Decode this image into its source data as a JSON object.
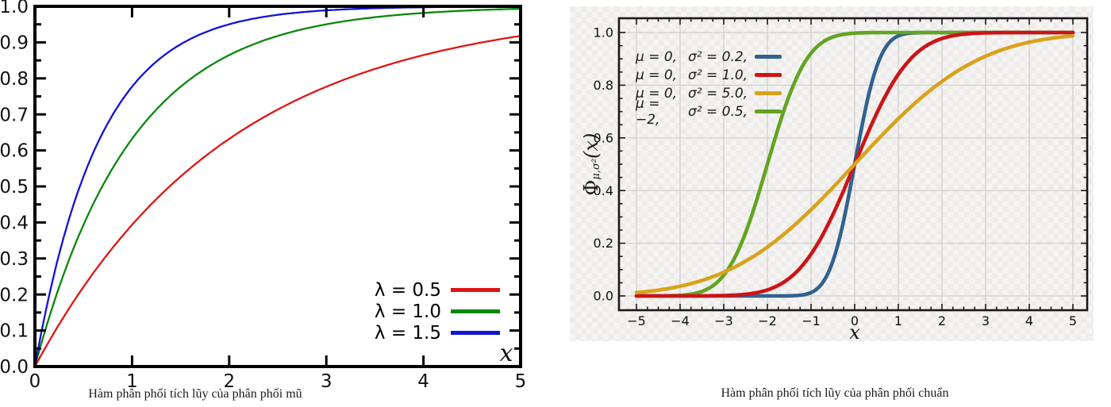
{
  "chart_data": [
    {
      "type": "line",
      "distribution": "exponential-cdf",
      "formula": "F(x) = 1 - exp(-lambda*x)",
      "caption": "Hàm phân phối tích lũy của phân phối mũ",
      "xlabel": "x",
      "xlim": [
        0,
        5
      ],
      "ylim": [
        0,
        1
      ],
      "x_ticks": {
        "values": [
          0,
          1,
          2,
          3,
          4,
          5
        ],
        "labels": [
          "0",
          "1",
          "2",
          "3",
          "4",
          "5"
        ]
      },
      "y_ticks": {
        "values": [
          0,
          0.1,
          0.2,
          0.3,
          0.4,
          0.5,
          0.6,
          0.7,
          0.8,
          0.9,
          1.0
        ],
        "labels": [
          "0.0",
          "0.1",
          "0.2",
          "0.3",
          "0.4",
          "0.5",
          "0.6",
          "0.7",
          "0.8",
          "0.9",
          "1.0"
        ]
      },
      "y_minor_step": 0.05,
      "grid": false,
      "legend_position": "lower right",
      "frame_color": "#000000",
      "series": [
        {
          "name": "λ = 0.5",
          "lambda": 0.5,
          "color": "#e01414"
        },
        {
          "name": "λ = 1.0",
          "lambda": 1.0,
          "color": "#0a870a"
        },
        {
          "name": "λ = 1.5",
          "lambda": 1.5,
          "color": "#1212d6"
        }
      ],
      "draw_order": [
        0,
        1,
        2
      ]
    },
    {
      "type": "line",
      "distribution": "normal-cdf",
      "formula": "F(x) = Phi((x - mu)/sigma)",
      "caption": "Hàm phân phối tích lũy của phân phối chuẩn",
      "xlabel": "x",
      "ylabel": "Φμ,σ²(x)",
      "ylabel_parts": {
        "phi": "Φ",
        "subscript": "μ,σ²",
        "argument": "(x)"
      },
      "xlim": [
        -5,
        5
      ],
      "ylim": [
        0,
        1
      ],
      "x_ticks": {
        "values": [
          -5,
          -4,
          -3,
          -2,
          -1,
          0,
          1,
          2,
          3,
          4,
          5
        ],
        "labels": [
          "−5",
          "−4",
          "−3",
          "−2",
          "−1",
          "0",
          "1",
          "2",
          "3",
          "4",
          "5"
        ]
      },
      "y_ticks": {
        "values": [
          0,
          0.2,
          0.4,
          0.6,
          0.8,
          1.0
        ],
        "labels": [
          "0.0",
          "0.2",
          "0.4",
          "0.6",
          "0.8",
          "1.0"
        ]
      },
      "x_minor_step": 0.25,
      "y_minor_step": 0.05,
      "grid": true,
      "grid_color": "#d3d3d1",
      "legend_position": "upper left",
      "frame_color": "#1a1a1a",
      "series": [
        {
          "mu_label": "μ = 0,",
          "sigma_label": "σ² = 0.2,",
          "mu": 0,
          "sigma2": 0.2,
          "color": "#31618f"
        },
        {
          "mu_label": "μ = 0,",
          "sigma_label": "σ² = 1.0,",
          "mu": 0,
          "sigma2": 1.0,
          "color": "#cc1417"
        },
        {
          "mu_label": "μ = 0,",
          "sigma_label": "σ² = 5.0,",
          "mu": 0,
          "sigma2": 5.0,
          "color": "#d9a21b"
        },
        {
          "mu_label": "μ = −2,",
          "sigma_label": "σ² = 0.5,",
          "mu": -2,
          "sigma2": 0.5,
          "color": "#63a421"
        }
      ],
      "draw_order": [
        0,
        3,
        1,
        2
      ]
    }
  ]
}
